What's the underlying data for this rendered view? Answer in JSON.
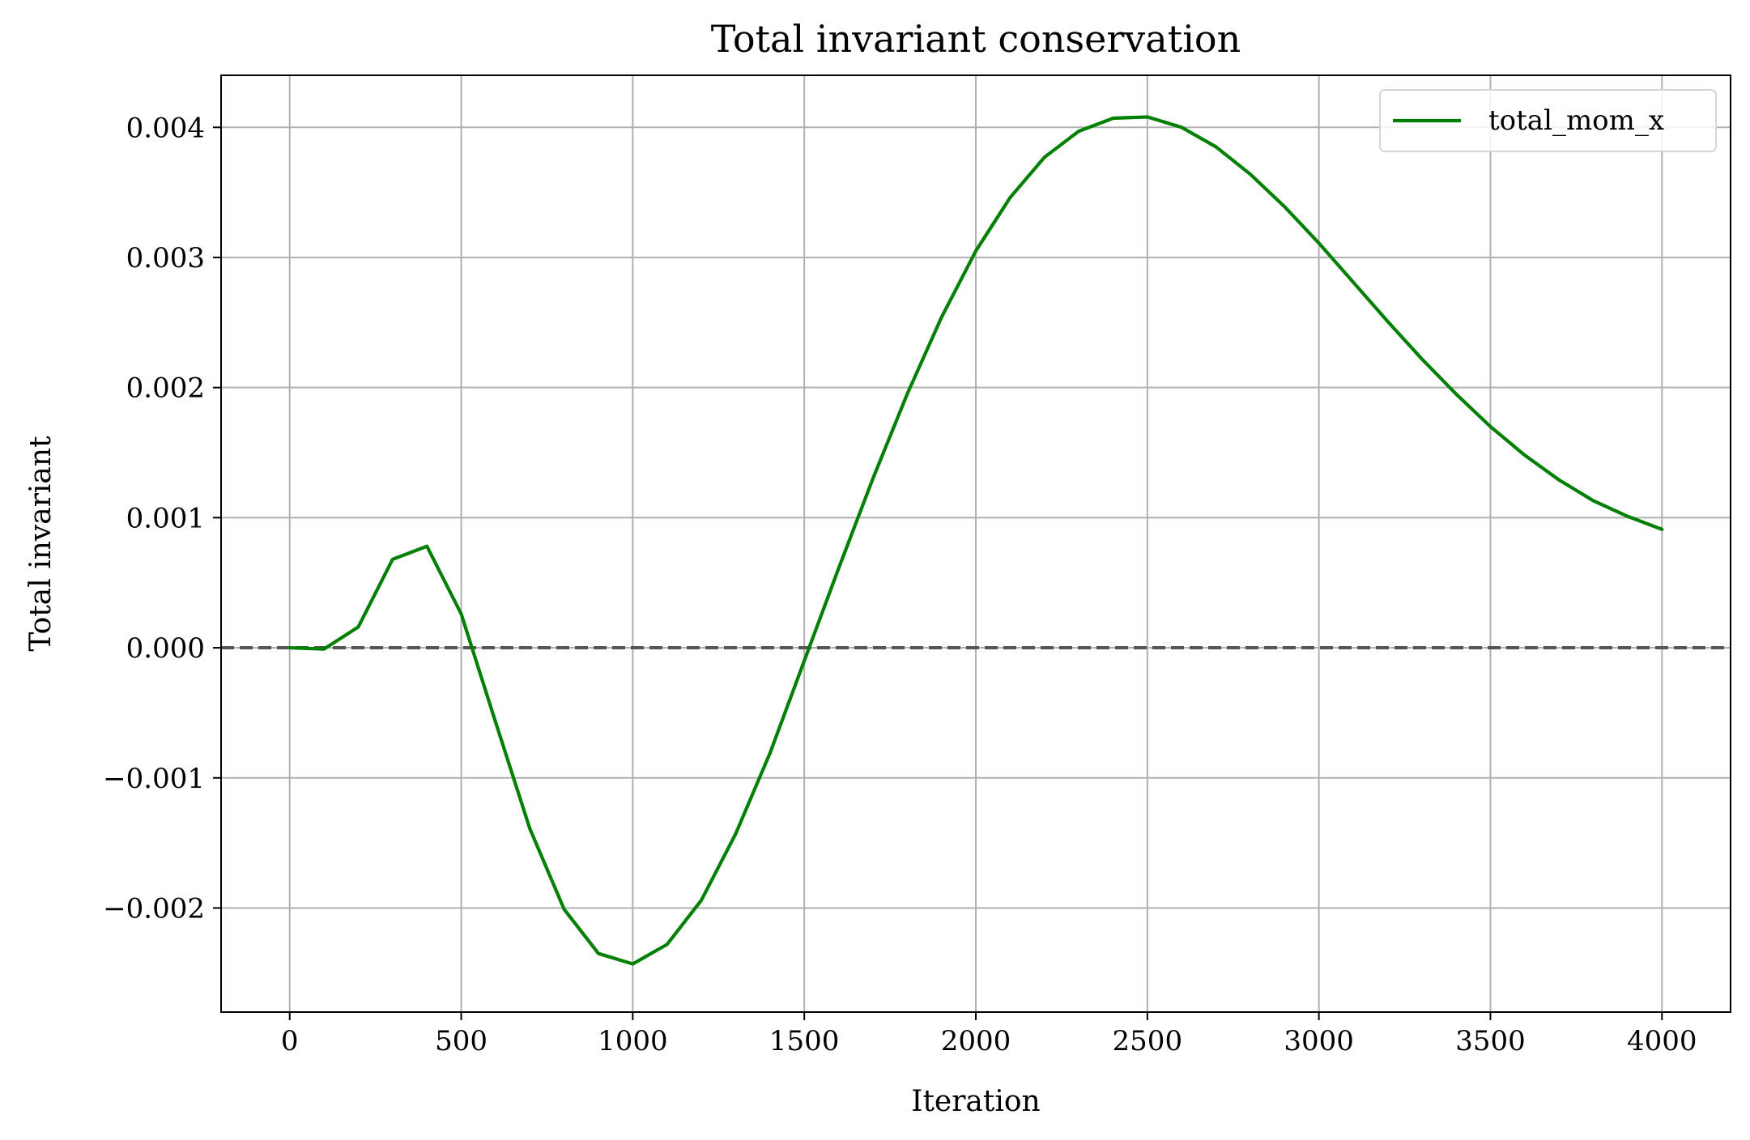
{
  "chart_data": {
    "type": "line",
    "title": "Total invariant conservation",
    "xlabel": "Iteration",
    "ylabel": "Total invariant",
    "xlim": [
      -200,
      4200
    ],
    "ylim": [
      -0.0028,
      0.0044
    ],
    "xticks": [
      0,
      500,
      1000,
      1500,
      2000,
      2500,
      3000,
      3500,
      4000
    ],
    "xtick_labels": [
      "0",
      "500",
      "1000",
      "1500",
      "2000",
      "2500",
      "3000",
      "3500",
      "4000"
    ],
    "yticks": [
      -0.002,
      -0.001,
      0.0,
      0.001,
      0.002,
      0.003,
      0.004
    ],
    "ytick_labels": [
      "−0.002",
      "−0.001",
      "0.000",
      "0.001",
      "0.002",
      "0.003",
      "0.004"
    ],
    "grid": true,
    "legend_position": "upper right",
    "reference_line": {
      "y": 0.0,
      "style": "dashed",
      "color": "#555555"
    },
    "series": [
      {
        "name": "total_mom_x",
        "color": "#008000",
        "x": [
          0,
          100,
          200,
          300,
          400,
          500,
          600,
          700,
          800,
          900,
          1000,
          1100,
          1200,
          1300,
          1400,
          1500,
          1600,
          1700,
          1800,
          1900,
          2000,
          2100,
          2200,
          2300,
          2400,
          2500,
          2600,
          2700,
          2800,
          2900,
          3000,
          3100,
          3200,
          3300,
          3400,
          3500,
          3600,
          3700,
          3800,
          3900,
          4000
        ],
        "y": [
          0.0,
          -1e-05,
          0.00016,
          0.00068,
          0.00078,
          0.00026,
          -0.00057,
          -0.00139,
          -0.00201,
          -0.00235,
          -0.00243,
          -0.00228,
          -0.00194,
          -0.00143,
          -0.00081,
          -0.0001,
          0.00061,
          0.0013,
          0.00195,
          0.00254,
          0.00305,
          0.00346,
          0.00377,
          0.00397,
          0.00407,
          0.00408,
          0.004,
          0.00385,
          0.00364,
          0.00339,
          0.00311,
          0.00281,
          0.00251,
          0.00222,
          0.00195,
          0.0017,
          0.00148,
          0.00129,
          0.00113,
          0.00101,
          0.00091
        ]
      }
    ]
  }
}
